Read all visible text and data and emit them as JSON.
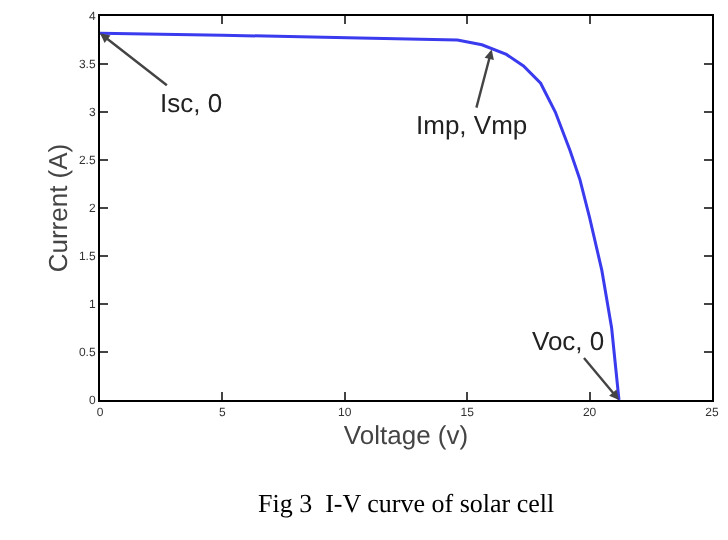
{
  "chart_data": {
    "type": "line",
    "xlabel": "Voltage (v)",
    "ylabel": "Current (A)",
    "x": [
      0,
      5,
      10.6,
      14.6,
      15.6,
      16.6,
      17.3,
      18,
      18.6,
      19.2,
      19.6,
      20,
      20.5,
      20.9,
      21.2
    ],
    "series": [
      {
        "color": "#3a3aee",
        "values": [
          3.82,
          3.8,
          3.77,
          3.75,
          3.7,
          3.6,
          3.48,
          3.3,
          3.0,
          2.6,
          2.3,
          1.9,
          1.35,
          0.75,
          0
        ]
      }
    ],
    "xlim": [
      0,
      25
    ],
    "xticks": [
      0,
      5,
      10,
      15,
      20,
      25
    ],
    "ylim": [
      0,
      4
    ],
    "yticks": [
      0,
      0.5,
      1,
      1.5,
      2,
      2.5,
      3,
      3.5,
      4
    ],
    "grid": false,
    "legend": false,
    "marker": "none",
    "line_style": "solid",
    "annotations": [
      {
        "text": "Isc, 0",
        "x": 0,
        "y": 3.82
      },
      {
        "text": "Imp, Vmp",
        "x": 16,
        "y": 3.65
      },
      {
        "text": "Voc, 0",
        "x": 21.2,
        "y": 0
      },
      "Fig 3  I-V curve of solar cell"
    ]
  }
}
